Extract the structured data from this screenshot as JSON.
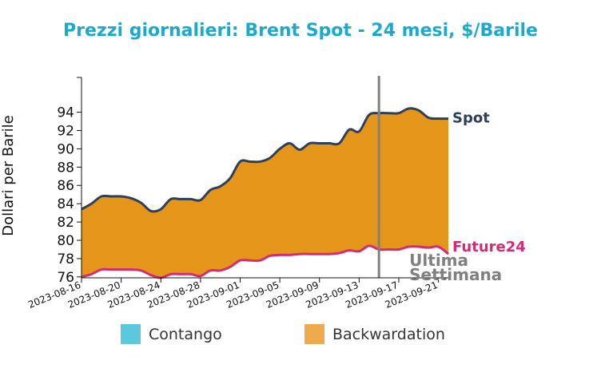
{
  "chart_data": {
    "type": "area",
    "title": "Prezzi giornalieri: Brent Spot - 24 mesi, $/Barile",
    "ylabel": "Dollari per Barile",
    "xlabel": "",
    "ylim": [
      75.9,
      97.8
    ],
    "yticks": [
      76,
      78,
      80,
      82,
      84,
      86,
      88,
      90,
      92,
      94
    ],
    "xlim": [
      "2023-08-16",
      "2023-09-22"
    ],
    "xticks": [
      "2023-08-16",
      "2023-08-20",
      "2023-08-24",
      "2023-08-28",
      "2023-09-01",
      "2023-09-05",
      "2023-09-09",
      "2023-09-13",
      "2023-09-17",
      "2023-09-21"
    ],
    "grid": false,
    "x": [
      "2023-08-16",
      "2023-08-17",
      "2023-08-18",
      "2023-08-19",
      "2023-08-20",
      "2023-08-21",
      "2023-08-22",
      "2023-08-23",
      "2023-08-24",
      "2023-08-25",
      "2023-08-26",
      "2023-08-27",
      "2023-08-28",
      "2023-08-29",
      "2023-08-30",
      "2023-08-31",
      "2023-09-01",
      "2023-09-02",
      "2023-09-03",
      "2023-09-04",
      "2023-09-05",
      "2023-09-06",
      "2023-09-07",
      "2023-09-08",
      "2023-09-09",
      "2023-09-10",
      "2023-09-11",
      "2023-09-12",
      "2023-09-13",
      "2023-09-14",
      "2023-09-15",
      "2023-09-16",
      "2023-09-17",
      "2023-09-18",
      "2023-09-19",
      "2023-09-20",
      "2023-09-21",
      "2023-09-22"
    ],
    "series": [
      {
        "name": "Spot",
        "color": "#2e3f5c",
        "values": [
          83.4,
          84.0,
          84.8,
          84.8,
          84.8,
          84.6,
          84.1,
          83.2,
          83.4,
          84.5,
          84.5,
          84.5,
          84.4,
          85.5,
          85.9,
          86.8,
          88.6,
          88.6,
          88.6,
          89.0,
          90.0,
          90.6,
          89.9,
          90.6,
          90.6,
          90.6,
          90.6,
          92.1,
          91.9,
          93.7,
          93.9,
          93.9,
          93.9,
          94.4,
          94.2,
          93.4,
          93.3,
          93.3
        ]
      },
      {
        "name": "Future24",
        "color": "#d52b72",
        "values": [
          76.0,
          76.3,
          76.8,
          76.8,
          76.8,
          76.8,
          76.7,
          76.2,
          75.9,
          76.3,
          76.3,
          76.3,
          76.1,
          76.7,
          76.7,
          77.1,
          77.8,
          77.8,
          77.8,
          78.3,
          78.4,
          78.4,
          78.5,
          78.5,
          78.5,
          78.5,
          78.6,
          78.9,
          78.8,
          79.4,
          79.0,
          79.0,
          79.0,
          79.3,
          79.3,
          79.2,
          79.3,
          78.5
        ]
      }
    ],
    "fill_color": "#e3961a",
    "last_week_date": "2023-09-15",
    "last_week_label": [
      "Ultima",
      "Settimana"
    ],
    "legend": {
      "placement": "bottom",
      "items": [
        {
          "label": "Contango",
          "color": "#5bc8de"
        },
        {
          "label": "Backwardation",
          "color": "#eeaa4c"
        }
      ]
    }
  }
}
